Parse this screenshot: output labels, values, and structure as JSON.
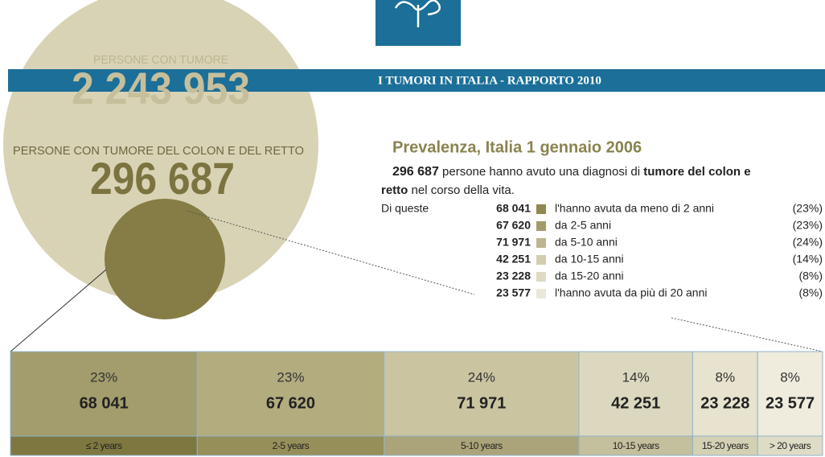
{
  "header": {
    "banner": "I TUMORI IN ITALIA - RAPPORTO 2010"
  },
  "circle": {
    "total_label": "PERSONE CON TUMORE",
    "total": "2 243 953",
    "colon_label": "PERSONE CON TUMORE DEL COLON E DEL RETTO",
    "colon": "296 687"
  },
  "summary": {
    "title": "Prevalenza, Italia 1 gennaio 2006",
    "text": [
      "296 687",
      " persone hanno avuto una diagnosi di ",
      "tumore del colon e",
      "retto",
      " nel corso della vita."
    ],
    "lead": "Di queste",
    "rows": [
      {
        "count": "68 041",
        "label": "l'hanno avuta da meno di 2 anni",
        "pct": "(23%)"
      },
      {
        "count": "67 620",
        "label": "da 2-5 anni",
        "pct": "(23%)"
      },
      {
        "count": "71 971",
        "label": "da 5-10 anni",
        "pct": "(24%)"
      },
      {
        "count": "42 251",
        "label": "da 10-15 anni",
        "pct": "(14%)"
      },
      {
        "count": "23 228",
        "label": "da 15-20 anni",
        "pct": "(8%)"
      },
      {
        "count": "23 577",
        "label": "l'hanno avuta da più di 20 anni",
        "pct": "(8%)"
      }
    ]
  },
  "strip": {
    "segments": [
      {
        "value": 23,
        "value_label": "23%",
        "count": "68 041",
        "range": "≤ 2 years"
      },
      {
        "value": 23,
        "value_label": "23%",
        "count": "67 620",
        "range": "2-5 years"
      },
      {
        "value": 24,
        "value_label": "24%",
        "count": "71 971",
        "range": "5-10 years"
      },
      {
        "value": 14,
        "value_label": "14%",
        "count": "42 251",
        "range": "10-15 years"
      },
      {
        "value": 8,
        "value_label": "8%",
        "count": "23 228",
        "range": "15-20 years"
      },
      {
        "value": 8,
        "value_label": "8%",
        "count": "23 577",
        "range": "> 20 years"
      }
    ]
  }
}
